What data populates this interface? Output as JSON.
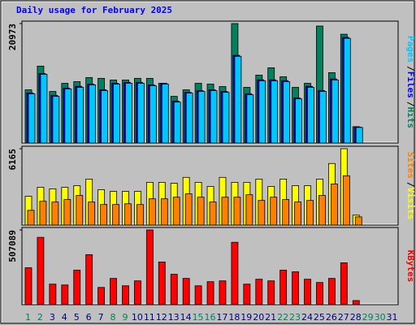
{
  "chart_data": {
    "type": "bar",
    "title": "Daily usage for February 2025",
    "categories": [
      "1",
      "2",
      "3",
      "4",
      "5",
      "6",
      "7",
      "8",
      "9",
      "10",
      "11",
      "12",
      "13",
      "14",
      "15",
      "16",
      "17",
      "18",
      "19",
      "20",
      "21",
      "22",
      "23",
      "24",
      "25",
      "26",
      "27",
      "28",
      "29",
      "30",
      "31"
    ],
    "category_colors": [
      "#00805c",
      "#00805c",
      "#000080",
      "#000080",
      "#000080",
      "#000080",
      "#000080",
      "#00805c",
      "#00805c",
      "#000080",
      "#000080",
      "#000080",
      "#000080",
      "#000080",
      "#00805c",
      "#00805c",
      "#000080",
      "#000080",
      "#000080",
      "#000080",
      "#000080",
      "#00805c",
      "#00805c",
      "#000080",
      "#000080",
      "#000080",
      "#000080",
      "#000080",
      "#00805c",
      "#00805c",
      "#000080"
    ],
    "legend_separator": "/",
    "panels": [
      {
        "ylim": [
          0,
          20973
        ],
        "yticks": [
          20973
        ],
        "series": [
          {
            "name": "Hits",
            "color": "#00805c",
            "values": [
              9340,
              13500,
              9050,
              10480,
              10770,
              11490,
              11350,
              11060,
              11060,
              11350,
              11350,
              10480,
              8190,
              9340,
              10480,
              10340,
              9910,
              20973,
              9770,
              11920,
              13210,
              11630,
              9770,
              10480,
              20540,
              12350,
              19100,
              2870,
              0,
              0,
              0
            ]
          },
          {
            "name": "Files",
            "color": "#0000ff",
            "values": [
              8800,
              12200,
              8350,
              9650,
              9950,
              10350,
              9350,
              10500,
              10650,
              10650,
              10200,
              10500,
              7350,
              8900,
              9200,
              9350,
              9050,
              15400,
              8650,
              11100,
              11100,
              10950,
              7900,
              9950,
              9200,
              11250,
              18550,
              2800,
              0,
              0,
              0
            ]
          },
          {
            "name": "Pages",
            "color": "#00c8ff",
            "values": [
              8620,
              12060,
              8190,
              9480,
              9770,
              10200,
              9190,
              10340,
              10480,
              10480,
              10050,
              10340,
              7180,
              8760,
              9050,
              9190,
              8900,
              15220,
              8470,
              10910,
              10910,
              10770,
              7750,
              9770,
              9050,
              11060,
              18380,
              2730,
              0,
              0,
              0
            ]
          }
        ]
      },
      {
        "ylim": [
          0,
          6165
        ],
        "yticks": [
          6165
        ],
        "series": [
          {
            "name": "Visits",
            "color": "#ffff00",
            "values": [
              2320,
              3050,
              2920,
              3050,
              3180,
              3710,
              2850,
              2720,
              2720,
              2720,
              3450,
              3450,
              3380,
              3850,
              3450,
              3120,
              3850,
              3450,
              3450,
              3710,
              3120,
              3710,
              3180,
              3180,
              3710,
              4970,
              6165,
              800,
              0,
              0,
              0
            ]
          },
          {
            "name": "Sites",
            "color": "#ff8000",
            "values": [
              1190,
              1920,
              1860,
              2060,
              2390,
              1860,
              1660,
              1660,
              1720,
              1660,
              2120,
              2120,
              2250,
              2520,
              2250,
              1860,
              2250,
              2250,
              2450,
              1990,
              2250,
              2060,
              1860,
              1990,
              2390,
              3320,
              3980,
              660,
              0,
              0,
              0
            ]
          }
        ]
      },
      {
        "ylim": [
          0,
          507089
        ],
        "yticks": [
          507089
        ],
        "series": [
          {
            "name": "KBytes",
            "color": "#ff0000",
            "values": [
              250700,
              456900,
              139300,
              133700,
              234000,
              339600,
              117000,
              178300,
              128200,
              161600,
              507089,
              289700,
              206200,
              178300,
              128200,
              156000,
              161600,
              423400,
              139300,
              172700,
              161600,
              234000,
              222900,
              172700,
              150400,
              178300,
              284100,
              27900,
              0,
              0,
              0
            ]
          }
        ]
      }
    ]
  }
}
